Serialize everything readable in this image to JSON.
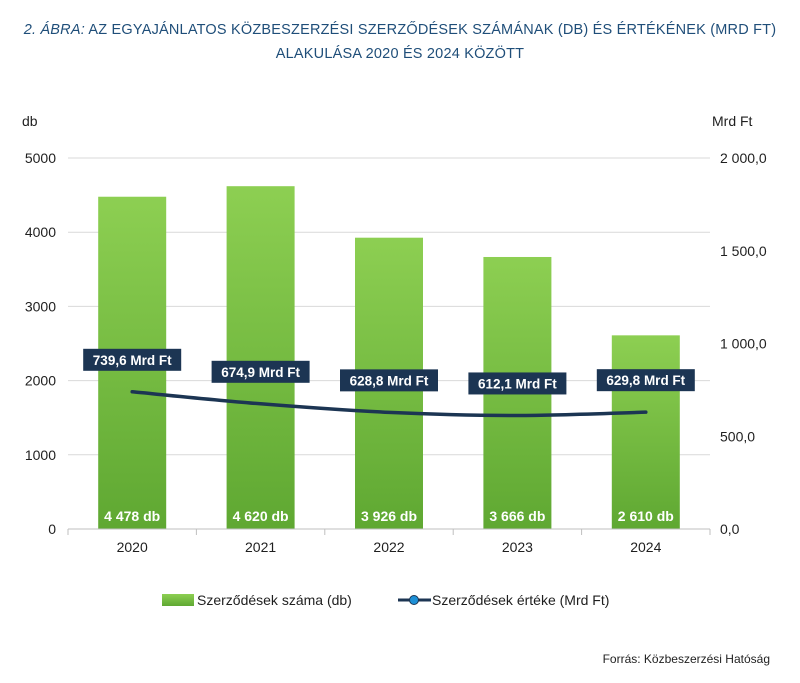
{
  "title": {
    "label": "2. ÁBRA:",
    "line1": "AZ EGYAJÁNLATOS KÖZBESZERZÉSI SZERZŐDÉSEK SZÁMÁNAK (DB) ÉS ÉRTÉKÉNEK (MRD FT)",
    "line2": "ALAKULÁSA 2020 ÉS 2024 KÖZÖTT"
  },
  "source": "Forrás: Közbeszerzési Hatóság",
  "colors": {
    "bar": "#7ac143",
    "line": "#1c3553",
    "label_box": "#1c3553",
    "title": "#1f4e79"
  },
  "chart_data": {
    "type": "bar+line",
    "categories": [
      "2020",
      "2021",
      "2022",
      "2023",
      "2024"
    ],
    "series": [
      {
        "name": "Szerződések száma (db)",
        "type": "bar",
        "axis": "left",
        "values": [
          4478,
          4620,
          3926,
          3666,
          2610
        ],
        "labels": [
          "4 478 db",
          "4 620 db",
          "3 926 db",
          "3 666 db",
          "2 610 db"
        ]
      },
      {
        "name": "Szerződések értéke (Mrd Ft)",
        "type": "line",
        "axis": "right",
        "values": [
          739.6,
          674.9,
          628.8,
          612.1,
          629.8
        ],
        "labels": [
          "739,6 Mrd Ft",
          "674,9 Mrd Ft",
          "628,8 Mrd Ft",
          "612,1 Mrd Ft",
          "629,8 Mrd Ft"
        ]
      }
    ],
    "left_axis": {
      "unit": "db",
      "ylim": [
        0,
        5000
      ],
      "ticks": [
        "0",
        "1000",
        "2000",
        "3000",
        "4000",
        "5000"
      ]
    },
    "right_axis": {
      "unit": "Mrd Ft",
      "ylim": [
        0,
        2000
      ],
      "ticks": [
        "0,0",
        "500,0",
        "1 000,0",
        "1 500,0",
        "2 000,0"
      ]
    },
    "grid": true,
    "legend": "bottom"
  }
}
